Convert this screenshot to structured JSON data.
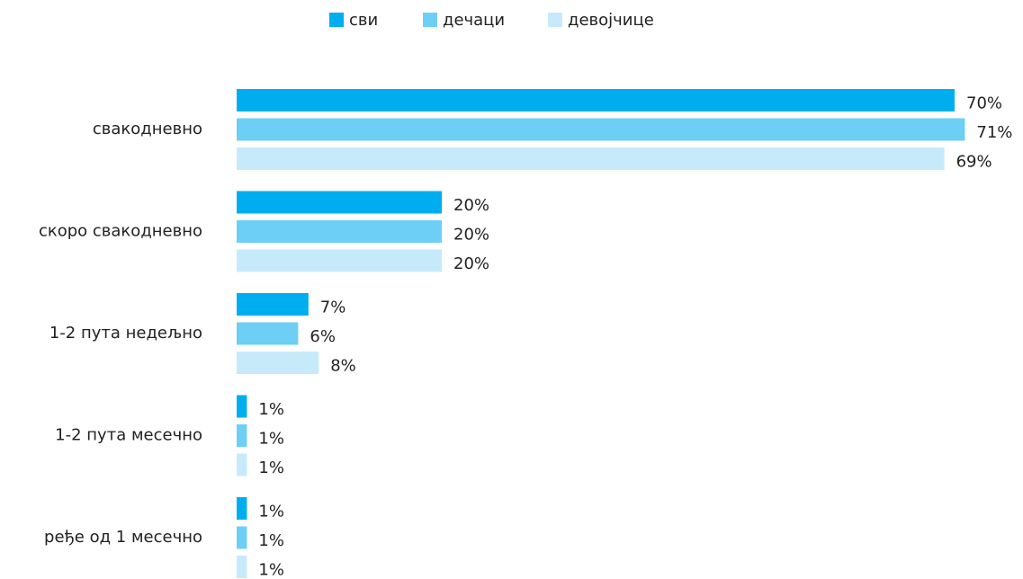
{
  "chart_data": {
    "type": "bar",
    "orientation": "horizontal",
    "categories": [
      "свакодневно",
      "скоро свакодневно",
      "1-2 пута недељно",
      "1-2 пута месечно",
      "ређе од 1 месечно"
    ],
    "legend_position": "top",
    "series": [
      {
        "name": "сви",
        "color": "#00aeef",
        "values": [
          70,
          20,
          7,
          1,
          1
        ],
        "value_labels": [
          "70%",
          "20%",
          "7%",
          "1%",
          "1%"
        ]
      },
      {
        "name": "дечаци",
        "color": "#6dcff6",
        "values": [
          71,
          20,
          6,
          1,
          1
        ],
        "value_labels": [
          "71%",
          "20%",
          "6%",
          "1%",
          "1%"
        ]
      },
      {
        "name": "девојчице",
        "color": "#c7eafb",
        "values": [
          69,
          20,
          8,
          1,
          1
        ],
        "value_labels": [
          "69%",
          "20%",
          "8%",
          "1%",
          "1%"
        ]
      }
    ]
  }
}
